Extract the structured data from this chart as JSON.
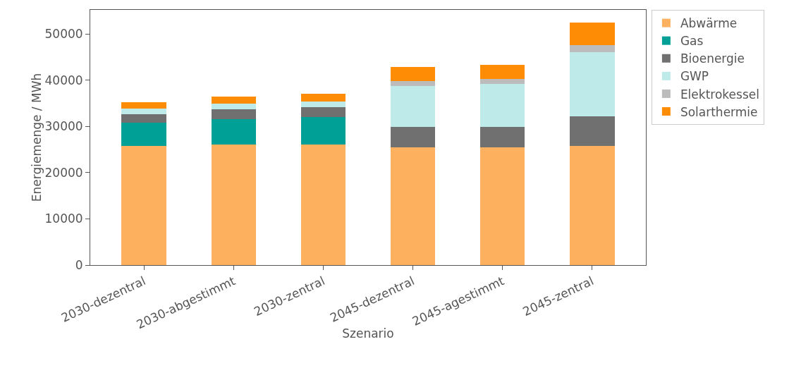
{
  "chart_data": {
    "type": "bar",
    "stacked": true,
    "xlabel": "Szenario",
    "ylabel": "Energiemenge / MWh",
    "categories": [
      "2030-dezentral",
      "2030-abgestimmt",
      "2030-zentral",
      "2045-dezentral",
      "2045-agestimmt",
      "2045-zentral"
    ],
    "series": [
      {
        "name": "Abwärme",
        "color": "#fdb05e",
        "values": [
          25800,
          26000,
          26000,
          25500,
          25500,
          25800
        ]
      },
      {
        "name": "Gas",
        "color": "#00a096",
        "values": [
          5000,
          5500,
          6000,
          0,
          0,
          0
        ]
      },
      {
        "name": "Bioenergie",
        "color": "#707070",
        "values": [
          1900,
          2200,
          2100,
          4400,
          4400,
          6400
        ]
      },
      {
        "name": "GWP",
        "color": "#bfeaea",
        "values": [
          1100,
          1200,
          1300,
          8900,
          9300,
          13900
        ]
      },
      {
        "name": "Elektrokessel",
        "color": "#bcbcbc",
        "values": [
          null,
          null,
          null,
          1000,
          1000,
          1500
        ]
      },
      {
        "name": "Solarthermie",
        "color": "#ff8c05",
        "values": [
          1500,
          1600,
          1700,
          3100,
          3100,
          4800
        ]
      }
    ],
    "ylim": [
      0,
      55200
    ],
    "yticks": [
      0,
      10000,
      20000,
      30000,
      40000,
      50000
    ],
    "grid": false,
    "legend": "top right"
  }
}
